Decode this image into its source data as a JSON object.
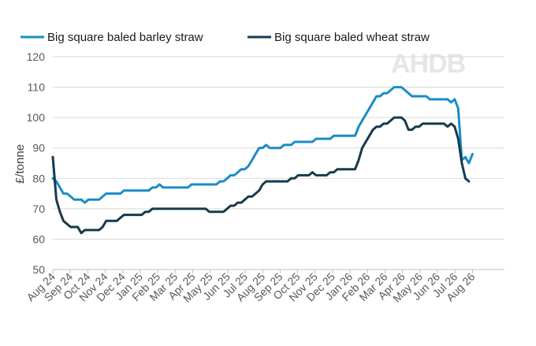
{
  "logo": {
    "text": "AHDB"
  },
  "chart_data": {
    "type": "line",
    "title": "",
    "xlabel": "",
    "ylabel": "£/tonne",
    "ylim": [
      50,
      120
    ],
    "yticks": [
      50,
      60,
      70,
      80,
      90,
      100,
      110,
      120
    ],
    "grid": "horizontal",
    "legend_position": "top",
    "x_tick_labels": [
      "Aug 24",
      "Sep 24",
      "Oct 24",
      "Nov 24",
      "Dec 24",
      "Jan 25",
      "Feb 25",
      "Mar 25",
      "Apr 25",
      "May 25",
      "Jun 25",
      "Jul 25",
      "Aug 25",
      "Sep 25",
      "Oct 25",
      "Nov 25",
      "Dec 25",
      "Jan 26",
      "Feb 26",
      "Mar 26",
      "Apr 26",
      "May 26",
      "Jun 26",
      "Jul 26",
      "Aug 26"
    ],
    "x_unit": "weeks from Aug 24",
    "series": [
      {
        "name": "Big square baled barley straw",
        "color": "#1a8cc7",
        "points": [
          [
            0,
            80
          ],
          [
            1,
            79
          ],
          [
            2,
            77
          ],
          [
            3,
            75
          ],
          [
            4,
            75
          ],
          [
            5,
            74
          ],
          [
            6,
            73
          ],
          [
            7,
            73
          ],
          [
            8,
            73
          ],
          [
            9,
            72
          ],
          [
            10,
            73
          ],
          [
            11,
            73
          ],
          [
            12,
            73
          ],
          [
            13,
            73
          ],
          [
            14,
            74
          ],
          [
            15,
            75
          ],
          [
            16,
            75
          ],
          [
            17,
            75
          ],
          [
            18,
            75
          ],
          [
            19,
            75
          ],
          [
            20,
            76
          ],
          [
            21,
            76
          ],
          [
            22,
            76
          ],
          [
            23,
            76
          ],
          [
            24,
            76
          ],
          [
            25,
            76
          ],
          [
            26,
            76
          ],
          [
            27,
            76
          ],
          [
            28,
            77
          ],
          [
            29,
            77
          ],
          [
            30,
            78
          ],
          [
            31,
            77
          ],
          [
            32,
            77
          ],
          [
            33,
            77
          ],
          [
            34,
            77
          ],
          [
            35,
            77
          ],
          [
            36,
            77
          ],
          [
            37,
            77
          ],
          [
            38,
            77
          ],
          [
            39,
            78
          ],
          [
            40,
            78
          ],
          [
            41,
            78
          ],
          [
            42,
            78
          ],
          [
            43,
            78
          ],
          [
            44,
            78
          ],
          [
            45,
            78
          ],
          [
            46,
            78
          ],
          [
            47,
            79
          ],
          [
            48,
            79
          ],
          [
            49,
            80
          ],
          [
            50,
            81
          ],
          [
            51,
            81
          ],
          [
            52,
            82
          ],
          [
            53,
            83
          ],
          [
            54,
            83
          ],
          [
            55,
            84
          ],
          [
            56,
            86
          ],
          [
            57,
            88
          ],
          [
            58,
            90
          ],
          [
            59,
            90
          ],
          [
            60,
            91
          ],
          [
            61,
            90
          ],
          [
            62,
            90
          ],
          [
            63,
            90
          ],
          [
            64,
            90
          ],
          [
            65,
            91
          ],
          [
            66,
            91
          ],
          [
            67,
            91
          ],
          [
            68,
            92
          ],
          [
            69,
            92
          ],
          [
            70,
            92
          ],
          [
            71,
            92
          ],
          [
            72,
            92
          ],
          [
            73,
            92
          ],
          [
            74,
            93
          ],
          [
            75,
            93
          ],
          [
            76,
            93
          ],
          [
            77,
            93
          ],
          [
            78,
            93
          ],
          [
            79,
            94
          ],
          [
            80,
            94
          ],
          [
            81,
            94
          ],
          [
            82,
            94
          ],
          [
            83,
            94
          ],
          [
            84,
            94
          ],
          [
            85,
            94
          ],
          [
            86,
            97
          ],
          [
            87,
            99
          ],
          [
            88,
            101
          ],
          [
            89,
            103
          ],
          [
            90,
            105
          ],
          [
            91,
            107
          ],
          [
            92,
            107
          ],
          [
            93,
            108
          ],
          [
            94,
            108
          ],
          [
            95,
            109
          ],
          [
            96,
            110
          ],
          [
            97,
            110
          ],
          [
            98,
            110
          ],
          [
            99,
            109
          ],
          [
            100,
            108
          ],
          [
            101,
            107
          ],
          [
            102,
            107
          ],
          [
            103,
            107
          ],
          [
            104,
            107
          ],
          [
            105,
            107
          ],
          [
            106,
            106
          ],
          [
            107,
            106
          ],
          [
            108,
            106
          ],
          [
            109,
            106
          ],
          [
            110,
            106
          ],
          [
            111,
            106
          ],
          [
            112,
            105
          ],
          [
            113,
            106
          ],
          [
            114,
            103
          ],
          [
            115,
            86
          ],
          [
            116,
            87
          ],
          [
            117,
            85
          ],
          [
            118,
            88
          ]
        ]
      },
      {
        "name": "Big square baled wheat straw",
        "color": "#173a4c",
        "points": [
          [
            0,
            87
          ],
          [
            1,
            73
          ],
          [
            2,
            69
          ],
          [
            3,
            66
          ],
          [
            4,
            65
          ],
          [
            5,
            64
          ],
          [
            6,
            64
          ],
          [
            7,
            64
          ],
          [
            8,
            62
          ],
          [
            9,
            63
          ],
          [
            10,
            63
          ],
          [
            11,
            63
          ],
          [
            12,
            63
          ],
          [
            13,
            63
          ],
          [
            14,
            64
          ],
          [
            15,
            66
          ],
          [
            16,
            66
          ],
          [
            17,
            66
          ],
          [
            18,
            66
          ],
          [
            19,
            67
          ],
          [
            20,
            68
          ],
          [
            21,
            68
          ],
          [
            22,
            68
          ],
          [
            23,
            68
          ],
          [
            24,
            68
          ],
          [
            25,
            68
          ],
          [
            26,
            69
          ],
          [
            27,
            69
          ],
          [
            28,
            70
          ],
          [
            29,
            70
          ],
          [
            30,
            70
          ],
          [
            31,
            70
          ],
          [
            32,
            70
          ],
          [
            33,
            70
          ],
          [
            34,
            70
          ],
          [
            35,
            70
          ],
          [
            36,
            70
          ],
          [
            37,
            70
          ],
          [
            38,
            70
          ],
          [
            39,
            70
          ],
          [
            40,
            70
          ],
          [
            41,
            70
          ],
          [
            42,
            70
          ],
          [
            43,
            70
          ],
          [
            44,
            69
          ],
          [
            45,
            69
          ],
          [
            46,
            69
          ],
          [
            47,
            69
          ],
          [
            48,
            69
          ],
          [
            49,
            70
          ],
          [
            50,
            71
          ],
          [
            51,
            71
          ],
          [
            52,
            72
          ],
          [
            53,
            72
          ],
          [
            54,
            73
          ],
          [
            55,
            74
          ],
          [
            56,
            74
          ],
          [
            57,
            75
          ],
          [
            58,
            76
          ],
          [
            59,
            78
          ],
          [
            60,
            79
          ],
          [
            61,
            79
          ],
          [
            62,
            79
          ],
          [
            63,
            79
          ],
          [
            64,
            79
          ],
          [
            65,
            79
          ],
          [
            66,
            79
          ],
          [
            67,
            80
          ],
          [
            68,
            80
          ],
          [
            69,
            81
          ],
          [
            70,
            81
          ],
          [
            71,
            81
          ],
          [
            72,
            81
          ],
          [
            73,
            82
          ],
          [
            74,
            81
          ],
          [
            75,
            81
          ],
          [
            76,
            81
          ],
          [
            77,
            81
          ],
          [
            78,
            82
          ],
          [
            79,
            82
          ],
          [
            80,
            83
          ],
          [
            81,
            83
          ],
          [
            82,
            83
          ],
          [
            83,
            83
          ],
          [
            84,
            83
          ],
          [
            85,
            83
          ],
          [
            86,
            86
          ],
          [
            87,
            90
          ],
          [
            88,
            92
          ],
          [
            89,
            94
          ],
          [
            90,
            96
          ],
          [
            91,
            97
          ],
          [
            92,
            97
          ],
          [
            93,
            98
          ],
          [
            94,
            98
          ],
          [
            95,
            99
          ],
          [
            96,
            100
          ],
          [
            97,
            100
          ],
          [
            98,
            100
          ],
          [
            99,
            99
          ],
          [
            100,
            96
          ],
          [
            101,
            96
          ],
          [
            102,
            97
          ],
          [
            103,
            97
          ],
          [
            104,
            98
          ],
          [
            105,
            98
          ],
          [
            106,
            98
          ],
          [
            107,
            98
          ],
          [
            108,
            98
          ],
          [
            109,
            98
          ],
          [
            110,
            98
          ],
          [
            111,
            97
          ],
          [
            112,
            98
          ],
          [
            113,
            97
          ],
          [
            114,
            93
          ],
          [
            115,
            85
          ],
          [
            116,
            80
          ],
          [
            117,
            79
          ]
        ]
      }
    ]
  }
}
